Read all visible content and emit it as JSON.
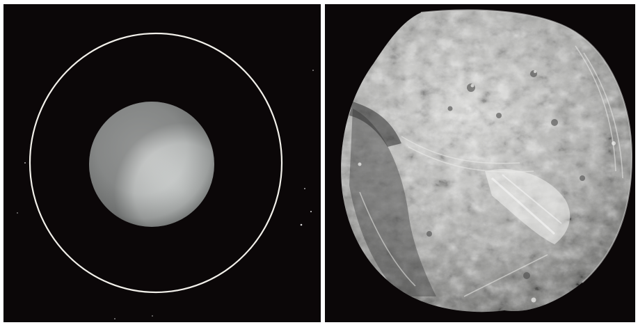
{
  "figure": {
    "panels": [
      {
        "subject": "planet-with-ring",
        "colors": {
          "background": "#0b0708",
          "planet": "#cfd2d2",
          "ring": "#f2f0ea"
        }
      },
      {
        "subject": "moon-surface",
        "colors": {
          "background": "#0b0708",
          "surface_light": "#d9d9d7",
          "surface_dark": "#5e5e5c"
        }
      }
    ]
  }
}
